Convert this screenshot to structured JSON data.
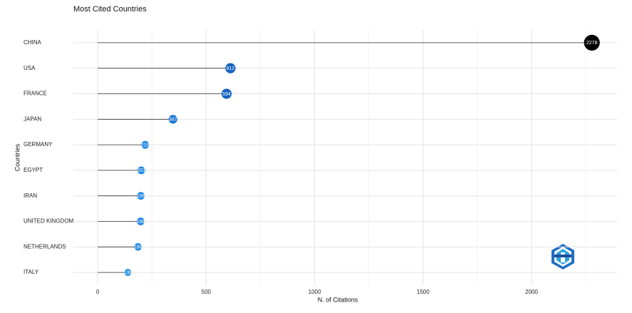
{
  "chart_data": {
    "type": "lollipop",
    "title": "Most Cited Countries",
    "x_label": "N. of Citations",
    "y_label": "Countries",
    "categories": [
      "CHINA",
      "USA",
      "FRANCE",
      "JAPAN",
      "GERMANY",
      "EGYPT",
      "IRAN",
      "UNITED KINGDOM",
      "NETHERLANDS",
      "ITALY"
    ],
    "values": [
      2278,
      612,
      594,
      347,
      219,
      201,
      199,
      198,
      186,
      139
    ],
    "colors": [
      "#000000",
      "#1565c0",
      "#1565c0",
      "#1e7ad6",
      "#2188e6",
      "#2188e6",
      "#2188e6",
      "#2188e6",
      "#2188e6",
      "#2391ea"
    ],
    "xlim": [
      -112,
      2394
    ],
    "xticks": [
      0,
      500,
      1000,
      1500,
      2000
    ],
    "xminorticks": [
      250,
      750,
      1250,
      1750,
      2250
    ],
    "grid": true
  }
}
